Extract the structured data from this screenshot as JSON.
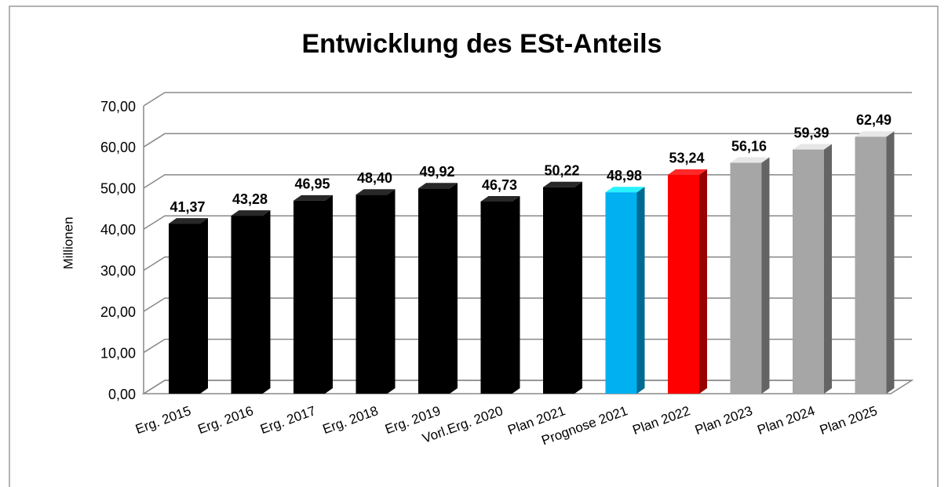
{
  "chart_data": {
    "type": "bar3d",
    "title": "Entwicklung des ESt-Anteils",
    "y_label": "Millionen",
    "categories": [
      "Erg. 2015",
      "Erg. 2016",
      "Erg. 2017",
      "Erg. 2018",
      "Erg. 2019",
      "Vorl.Erg. 2020",
      "Plan 2021",
      "Prognose 2021",
      "Plan 2022",
      "Plan 2023",
      "Plan 2024",
      "Plan 2025"
    ],
    "values": [
      41.37,
      43.28,
      46.95,
      48.4,
      49.92,
      46.73,
      50.22,
      48.98,
      53.24,
      56.16,
      59.39,
      62.49
    ],
    "value_labels": [
      "41,37",
      "43,28",
      "46,95",
      "48,40",
      "49,92",
      "46,73",
      "50,22",
      "48,98",
      "53,24",
      "56,16",
      "59,39",
      "62,49"
    ],
    "colors": [
      "#000000",
      "#000000",
      "#000000",
      "#000000",
      "#000000",
      "#000000",
      "#000000",
      "#00b0f0",
      "#ff0000",
      "#a6a6a6",
      "#a6a6a6",
      "#a6a6a6"
    ],
    "ylim": [
      0,
      70
    ],
    "yticks": [
      {
        "value": 0,
        "label": "0,00"
      },
      {
        "value": 10,
        "label": "10,00"
      },
      {
        "value": 20,
        "label": "20,00"
      },
      {
        "value": 30,
        "label": "30,00"
      },
      {
        "value": 40,
        "label": "40,00"
      },
      {
        "value": 50,
        "label": "50,00"
      },
      {
        "value": 60,
        "label": "60,00"
      },
      {
        "value": 70,
        "label": "70,00"
      }
    ],
    "grid": true
  }
}
